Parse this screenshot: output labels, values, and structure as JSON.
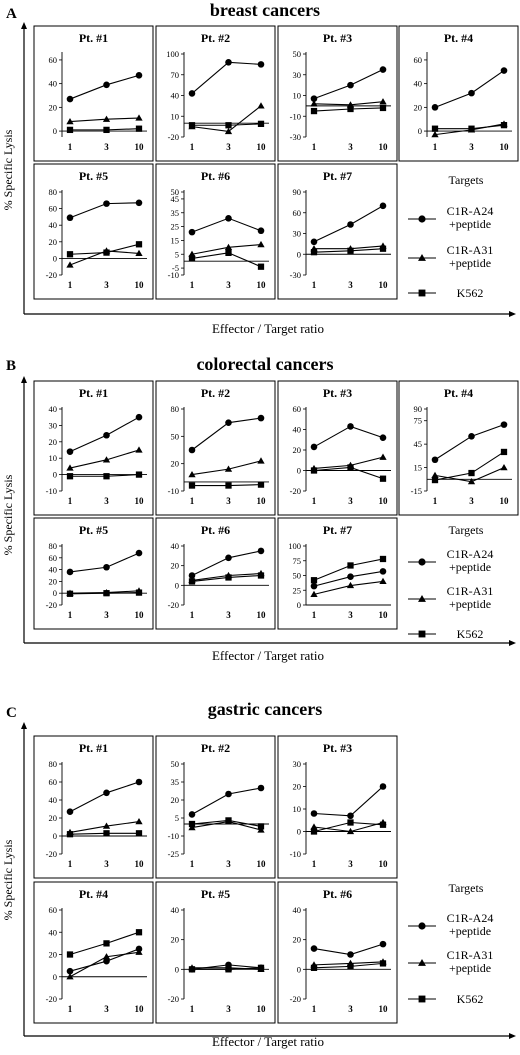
{
  "figure": {
    "ylabel": "% Specific Lysis",
    "xlabel": "Effector / Target ratio",
    "legend_title": "Targets",
    "legend": [
      {
        "key": "circle",
        "line1": "C1R-A24",
        "line2": "+peptide"
      },
      {
        "key": "triangle",
        "line1": "C1R-A31",
        "line2": "+peptide"
      },
      {
        "key": "square",
        "line1": "K562",
        "line2": ""
      }
    ],
    "x_ticks": [
      "1",
      "3",
      "10"
    ]
  },
  "chart_data": [
    {
      "type": "line",
      "section": "A",
      "title": "breast cancers",
      "ylabel": "% Specific Lysis",
      "xlabel": "Effector / Target ratio",
      "panels": [
        {
          "title": "Pt. #1",
          "yticks": [
            0,
            20,
            40,
            60
          ],
          "ylim": [
            -5,
            65
          ],
          "x": [
            1,
            3,
            10
          ],
          "series": {
            "circle": [
              27,
              39,
              47
            ],
            "triangle": [
              8,
              10,
              11
            ],
            "square": [
              1,
              1,
              2
            ]
          }
        },
        {
          "title": "Pt. #2",
          "yticks": [
            -20,
            10,
            40,
            70,
            100
          ],
          "ylim": [
            -20,
            100
          ],
          "x": [
            1,
            3,
            10
          ],
          "series": {
            "circle": [
              43,
              88,
              85
            ],
            "triangle": [
              -5,
              -12,
              25
            ],
            "square": [
              -3,
              -3,
              -1
            ]
          }
        },
        {
          "title": "Pt. #3",
          "yticks": [
            -30,
            -10,
            10,
            30,
            50
          ],
          "ylim": [
            -30,
            50
          ],
          "x": [
            1,
            3,
            10
          ],
          "series": {
            "circle": [
              7,
              20,
              35
            ],
            "triangle": [
              2,
              1,
              4
            ],
            "square": [
              -5,
              -3,
              -2
            ]
          }
        },
        {
          "title": "Pt. #4",
          "yticks": [
            0,
            20,
            40,
            60
          ],
          "ylim": [
            -5,
            65
          ],
          "x": [
            1,
            3,
            10
          ],
          "series": {
            "circle": [
              20,
              32,
              51
            ],
            "triangle": [
              -3,
              1,
              6
            ],
            "square": [
              2,
              2,
              5
            ]
          }
        },
        {
          "title": "Pt. #5",
          "yticks": [
            -20,
            0,
            20,
            40,
            60,
            80
          ],
          "ylim": [
            -20,
            80
          ],
          "x": [
            1,
            3,
            10
          ],
          "series": {
            "circle": [
              49,
              66,
              67
            ],
            "triangle": [
              -8,
              9,
              6
            ],
            "square": [
              5,
              7,
              17
            ]
          }
        },
        {
          "title": "Pt. #6",
          "yticks": [
            -10,
            -5,
            5,
            15,
            25,
            35,
            45,
            50
          ],
          "ylim": [
            -10,
            50
          ],
          "x": [
            1,
            3,
            10
          ],
          "series": {
            "circle": [
              21,
              31,
              22
            ],
            "triangle": [
              5,
              10,
              12
            ],
            "square": [
              2,
              6,
              -4
            ]
          }
        },
        {
          "title": "Pt. #7",
          "yticks": [
            -30,
            0,
            30,
            60,
            90
          ],
          "ylim": [
            -30,
            90
          ],
          "x": [
            1,
            3,
            10
          ],
          "series": {
            "circle": [
              18,
              43,
              70
            ],
            "triangle": [
              8,
              8,
              12
            ],
            "square": [
              3,
              5,
              8
            ]
          }
        }
      ]
    },
    {
      "type": "line",
      "section": "B",
      "title": "colorectal cancers",
      "ylabel": "% Specific Lysis",
      "xlabel": "Effector / Target ratio",
      "panels": [
        {
          "title": "Pt. #1",
          "yticks": [
            -10,
            0,
            10,
            20,
            30,
            40
          ],
          "ylim": [
            -10,
            40
          ],
          "x": [
            1,
            3,
            10
          ],
          "series": {
            "circle": [
              14,
              24,
              35
            ],
            "triangle": [
              4,
              9,
              15
            ],
            "square": [
              -1,
              -1,
              0
            ]
          }
        },
        {
          "title": "Pt. #2",
          "yticks": [
            -10,
            20,
            50,
            80
          ],
          "ylim": [
            -10,
            80
          ],
          "x": [
            1,
            3,
            10
          ],
          "series": {
            "circle": [
              35,
              65,
              70
            ],
            "triangle": [
              8,
              14,
              23
            ],
            "square": [
              -4,
              -4,
              -3
            ]
          }
        },
        {
          "title": "Pt. #3",
          "yticks": [
            -20,
            0,
            20,
            40,
            60
          ],
          "ylim": [
            -20,
            60
          ],
          "x": [
            1,
            3,
            10
          ],
          "series": {
            "circle": [
              23,
              43,
              32
            ],
            "triangle": [
              2,
              5,
              13
            ],
            "square": [
              0,
              3,
              -8
            ]
          }
        },
        {
          "title": "Pt. #4",
          "yticks": [
            -15,
            15,
            45,
            75,
            90
          ],
          "ylim": [
            -15,
            90
          ],
          "x": [
            1,
            3,
            10
          ],
          "series": {
            "circle": [
              25,
              55,
              70
            ],
            "triangle": [
              5,
              -3,
              15
            ],
            "square": [
              -1,
              8,
              35
            ]
          }
        },
        {
          "title": "Pt. #5",
          "yticks": [
            -20,
            0,
            20,
            40,
            60,
            80
          ],
          "ylim": [
            -20,
            80
          ],
          "x": [
            1,
            3,
            10
          ],
          "series": {
            "circle": [
              36,
              44,
              68
            ],
            "triangle": [
              0,
              1,
              4
            ],
            "square": [
              -1,
              0,
              1
            ]
          }
        },
        {
          "title": "Pt. #6",
          "yticks": [
            -20,
            0,
            20,
            40
          ],
          "ylim": [
            -20,
            40
          ],
          "x": [
            1,
            3,
            10
          ],
          "series": {
            "circle": [
              10,
              28,
              35
            ],
            "triangle": [
              5,
              10,
              12
            ],
            "square": [
              4,
              8,
              10
            ]
          }
        },
        {
          "title": "Pt. #7",
          "yticks": [
            0,
            25,
            50,
            75,
            100
          ],
          "ylim": [
            0,
            100
          ],
          "x": [
            1,
            3,
            10
          ],
          "series": {
            "circle": [
              32,
              48,
              57
            ],
            "triangle": [
              18,
              33,
              40
            ],
            "square": [
              42,
              67,
              78
            ]
          }
        }
      ]
    },
    {
      "type": "line",
      "section": "C",
      "title": "gastric cancers",
      "ylabel": "% Specific Lysis",
      "xlabel": "Effector / Target ratio",
      "panels": [
        {
          "title": "Pt. #1",
          "yticks": [
            -20,
            0,
            20,
            40,
            60,
            80
          ],
          "ylim": [
            -20,
            80
          ],
          "x": [
            1,
            3,
            10
          ],
          "series": {
            "circle": [
              27,
              48,
              60
            ],
            "triangle": [
              4,
              11,
              16
            ],
            "square": [
              2,
              3,
              3
            ]
          }
        },
        {
          "title": "Pt. #2",
          "yticks": [
            -25,
            -10,
            5,
            20,
            35,
            50
          ],
          "ylim": [
            -25,
            50
          ],
          "x": [
            1,
            3,
            10
          ],
          "series": {
            "circle": [
              8,
              25,
              30
            ],
            "triangle": [
              -3,
              2,
              -5
            ],
            "square": [
              0,
              3,
              -2
            ]
          }
        },
        {
          "title": "Pt. #3",
          "yticks": [
            -10,
            0,
            10,
            20,
            30
          ],
          "ylim": [
            -10,
            30
          ],
          "x": [
            1,
            3,
            10
          ],
          "series": {
            "circle": [
              8,
              7,
              20
            ],
            "triangle": [
              2,
              0,
              4
            ],
            "square": [
              0,
              4,
              3
            ]
          }
        },
        {
          "title": "Pt. #4",
          "yticks": [
            -20,
            0,
            20,
            40,
            60
          ],
          "ylim": [
            -20,
            60
          ],
          "x": [
            1,
            3,
            10
          ],
          "series": {
            "circle": [
              5,
              14,
              25
            ],
            "triangle": [
              0,
              18,
              22
            ],
            "square": [
              20,
              30,
              40
            ]
          }
        },
        {
          "title": "Pt. #5",
          "yticks": [
            -20,
            0,
            20,
            40
          ],
          "ylim": [
            -20,
            40
          ],
          "x": [
            1,
            3,
            10
          ],
          "series": {
            "circle": [
              0,
              3,
              1
            ],
            "triangle": [
              1,
              1,
              0
            ],
            "square": [
              0,
              0,
              1
            ]
          }
        },
        {
          "title": "Pt. #6",
          "yticks": [
            -20,
            0,
            20,
            40
          ],
          "ylim": [
            -20,
            40
          ],
          "x": [
            1,
            3,
            10
          ],
          "series": {
            "circle": [
              14,
              10,
              17
            ],
            "triangle": [
              3,
              4,
              5
            ],
            "square": [
              1,
              2,
              4
            ]
          }
        }
      ]
    }
  ]
}
